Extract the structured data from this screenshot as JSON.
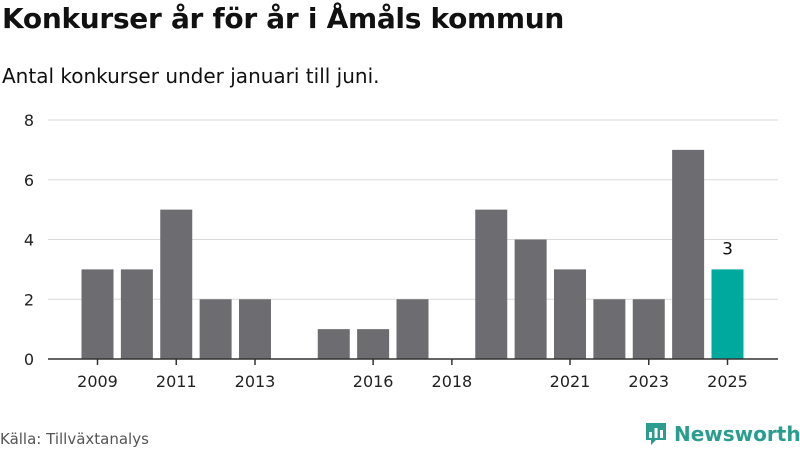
{
  "title": "Konkurser år för år i Åmåls kommun",
  "subtitle": "Antal konkurser under januari till juni.",
  "source": "Källa: Tillväxtanalys",
  "brand": "Newsworthy",
  "colors": {
    "bar": "#6d6c71",
    "highlight": "#00a99d",
    "grid": "#d9d9d9",
    "axis": "#333333",
    "brand": "#2a9d8f"
  },
  "chart_data": {
    "type": "bar",
    "categories": [
      "2009",
      "2010",
      "2011",
      "2012",
      "2013",
      "2014",
      "2015",
      "2016",
      "2017",
      "2018",
      "2019",
      "2020",
      "2021",
      "2022",
      "2023",
      "2024",
      "2025"
    ],
    "values": [
      3,
      3,
      5,
      2,
      2,
      0,
      1,
      1,
      2,
      0,
      5,
      4,
      3,
      2,
      2,
      7,
      3
    ],
    "highlight_category": "2025",
    "data_labels": [
      {
        "category": "2025",
        "text": "3"
      }
    ],
    "x_tick_labels": [
      "2009",
      "2011",
      "2013",
      "2016",
      "2018",
      "2021",
      "2023",
      "2025"
    ],
    "y_ticks": [
      "0",
      "2",
      "4",
      "6",
      "8"
    ],
    "ylim": [
      0,
      8
    ],
    "xlabel": "",
    "ylabel": "",
    "grid": true
  }
}
